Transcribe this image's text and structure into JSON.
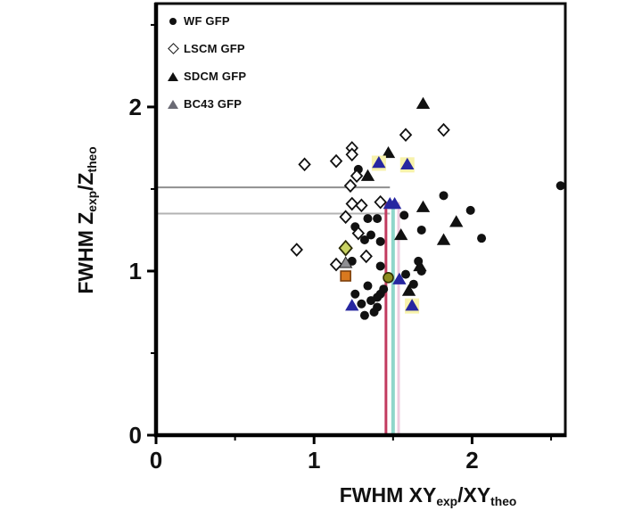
{
  "legend": {
    "items": [
      {
        "label": "WF GFP",
        "marker": "circle"
      },
      {
        "label": "LSCM GFP",
        "marker": "open-diamond"
      },
      {
        "label": "SDCM GFP",
        "marker": "triangle"
      },
      {
        "label": "BC43 GFP",
        "marker": "triangle-gray"
      }
    ]
  },
  "axes": {
    "x_label": {
      "pre": "FWHM XY",
      "sub1": "exp",
      "mid": "/XY",
      "sub2": "theo"
    },
    "y_label": {
      "pre": "FWHM Z",
      "sub1": "exp",
      "mid": "/Z",
      "sub2": "theo"
    },
    "x_range": [
      0,
      2.59
    ],
    "y_range": [
      0,
      2.63
    ],
    "x_major_ticks": [
      0,
      1,
      2
    ],
    "y_major_ticks": [
      0,
      1,
      2
    ],
    "x_minor_ticks": [
      0.5,
      1.5,
      2.5
    ],
    "y_minor_ticks": [
      0.5,
      1.5,
      2.5
    ],
    "tick_label_color": "#111111",
    "frame_color": "#0d0d0d"
  },
  "chart_data": {
    "type": "scatter",
    "title": "",
    "xlabel": "FWHM XYexp/XYtheo",
    "ylabel": "FWHM Zexp/Ztheo",
    "xlim": [
      0,
      2.59
    ],
    "ylim": [
      0,
      2.63
    ],
    "series": [
      {
        "name": "WF GFP",
        "marker": "circle",
        "color": "#111111",
        "points": [
          [
            1.28,
            1.62
          ],
          [
            1.82,
            1.46
          ],
          [
            1.99,
            1.37
          ],
          [
            2.06,
            1.2
          ],
          [
            2.56,
            1.52
          ],
          [
            1.57,
            1.34
          ],
          [
            1.68,
            1.25
          ],
          [
            1.34,
            1.32
          ],
          [
            1.4,
            1.32
          ],
          [
            1.26,
            1.27
          ],
          [
            1.36,
            1.22
          ],
          [
            1.32,
            1.19
          ],
          [
            1.42,
            1.18
          ],
          [
            1.24,
            1.06
          ],
          [
            1.42,
            1.03
          ],
          [
            1.58,
            0.98
          ],
          [
            1.63,
            0.92
          ],
          [
            1.66,
            1.06
          ],
          [
            1.68,
            1.0
          ],
          [
            1.42,
            0.86
          ],
          [
            1.26,
            0.86
          ],
          [
            1.34,
            0.91
          ],
          [
            1.44,
            0.89
          ],
          [
            1.4,
            0.84
          ],
          [
            1.3,
            0.8
          ],
          [
            1.36,
            0.82
          ],
          [
            1.32,
            0.73
          ],
          [
            1.38,
            0.75
          ],
          [
            1.4,
            0.78
          ]
        ]
      },
      {
        "name": "LSCM GFP",
        "marker": "open-diamond",
        "color": "#111111",
        "points": [
          [
            0.94,
            1.65
          ],
          [
            1.14,
            1.67
          ],
          [
            1.24,
            1.75
          ],
          [
            1.24,
            1.71
          ],
          [
            1.58,
            1.83
          ],
          [
            1.82,
            1.86
          ],
          [
            1.27,
            1.58
          ],
          [
            1.23,
            1.52
          ],
          [
            1.24,
            1.41
          ],
          [
            1.3,
            1.4
          ],
          [
            1.42,
            1.42
          ],
          [
            1.2,
            1.33
          ],
          [
            1.28,
            1.23
          ],
          [
            1.33,
            1.09
          ],
          [
            0.89,
            1.13
          ],
          [
            1.14,
            1.04
          ]
        ]
      },
      {
        "name": "SDCM GFP",
        "marker": "triangle",
        "color": "#111111",
        "points": [
          [
            1.69,
            2.02
          ],
          [
            1.47,
            1.72
          ],
          [
            1.34,
            1.58
          ],
          [
            1.69,
            1.39
          ],
          [
            1.9,
            1.3
          ],
          [
            1.82,
            1.19
          ],
          [
            1.55,
            1.22
          ],
          [
            1.67,
            1.03
          ],
          [
            1.6,
            0.88
          ]
        ]
      },
      {
        "name": "BC43 GFP",
        "marker": "triangle",
        "color": "#2626a0",
        "points": [
          [
            1.48,
            1.41
          ],
          [
            1.51,
            1.41
          ],
          [
            1.54,
            0.95
          ],
          [
            1.24,
            0.79
          ]
        ]
      },
      {
        "name": "BC43 GFP highlighted",
        "marker": "triangle",
        "color": "#2626a0",
        "highlight_fill": "#f7f2ab",
        "points": [
          [
            1.41,
            1.66
          ],
          [
            1.59,
            1.65
          ],
          [
            1.62,
            0.79
          ]
        ]
      },
      {
        "name": "LSCM mean marker",
        "marker": "diamond-filled",
        "color": "#c9d362",
        "stroke": "#2b2b06",
        "points": [
          [
            1.2,
            1.14
          ]
        ]
      },
      {
        "name": "BC43 mean marker",
        "marker": "triangle",
        "color": "#8f8f93",
        "stroke": "#222222",
        "points": [
          [
            1.2,
            1.05
          ]
        ]
      },
      {
        "name": "WF mean marker",
        "marker": "square",
        "color": "#d9791f",
        "stroke": "#7c3f0c",
        "points": [
          [
            1.2,
            0.97
          ]
        ]
      },
      {
        "name": "SDCM mean marker",
        "marker": "circle-outlined",
        "color": "#8c8c1e",
        "stroke": "#2e2e00",
        "points": [
          [
            1.47,
            0.96
          ]
        ]
      }
    ],
    "reference_lines": [
      {
        "orient": "h",
        "value": 1.51,
        "from": 0,
        "to": 1.48,
        "color": "#8f8f8f",
        "width": 2
      },
      {
        "orient": "h",
        "value": 1.35,
        "from": 0,
        "to": 1.48,
        "color": "#b3b3b3",
        "width": 2
      },
      {
        "orient": "v",
        "value": 1.455,
        "from": 0,
        "to": 1.42,
        "color": "#c23b60",
        "width": 3
      },
      {
        "orient": "v",
        "value": 1.5,
        "from": 0,
        "to": 1.42,
        "color": "#8fd6ca",
        "width": 4
      },
      {
        "orient": "v",
        "value": 1.535,
        "from": 0,
        "to": 1.42,
        "color": "#eecade",
        "width": 3
      }
    ],
    "legend_position": "upper-left"
  }
}
